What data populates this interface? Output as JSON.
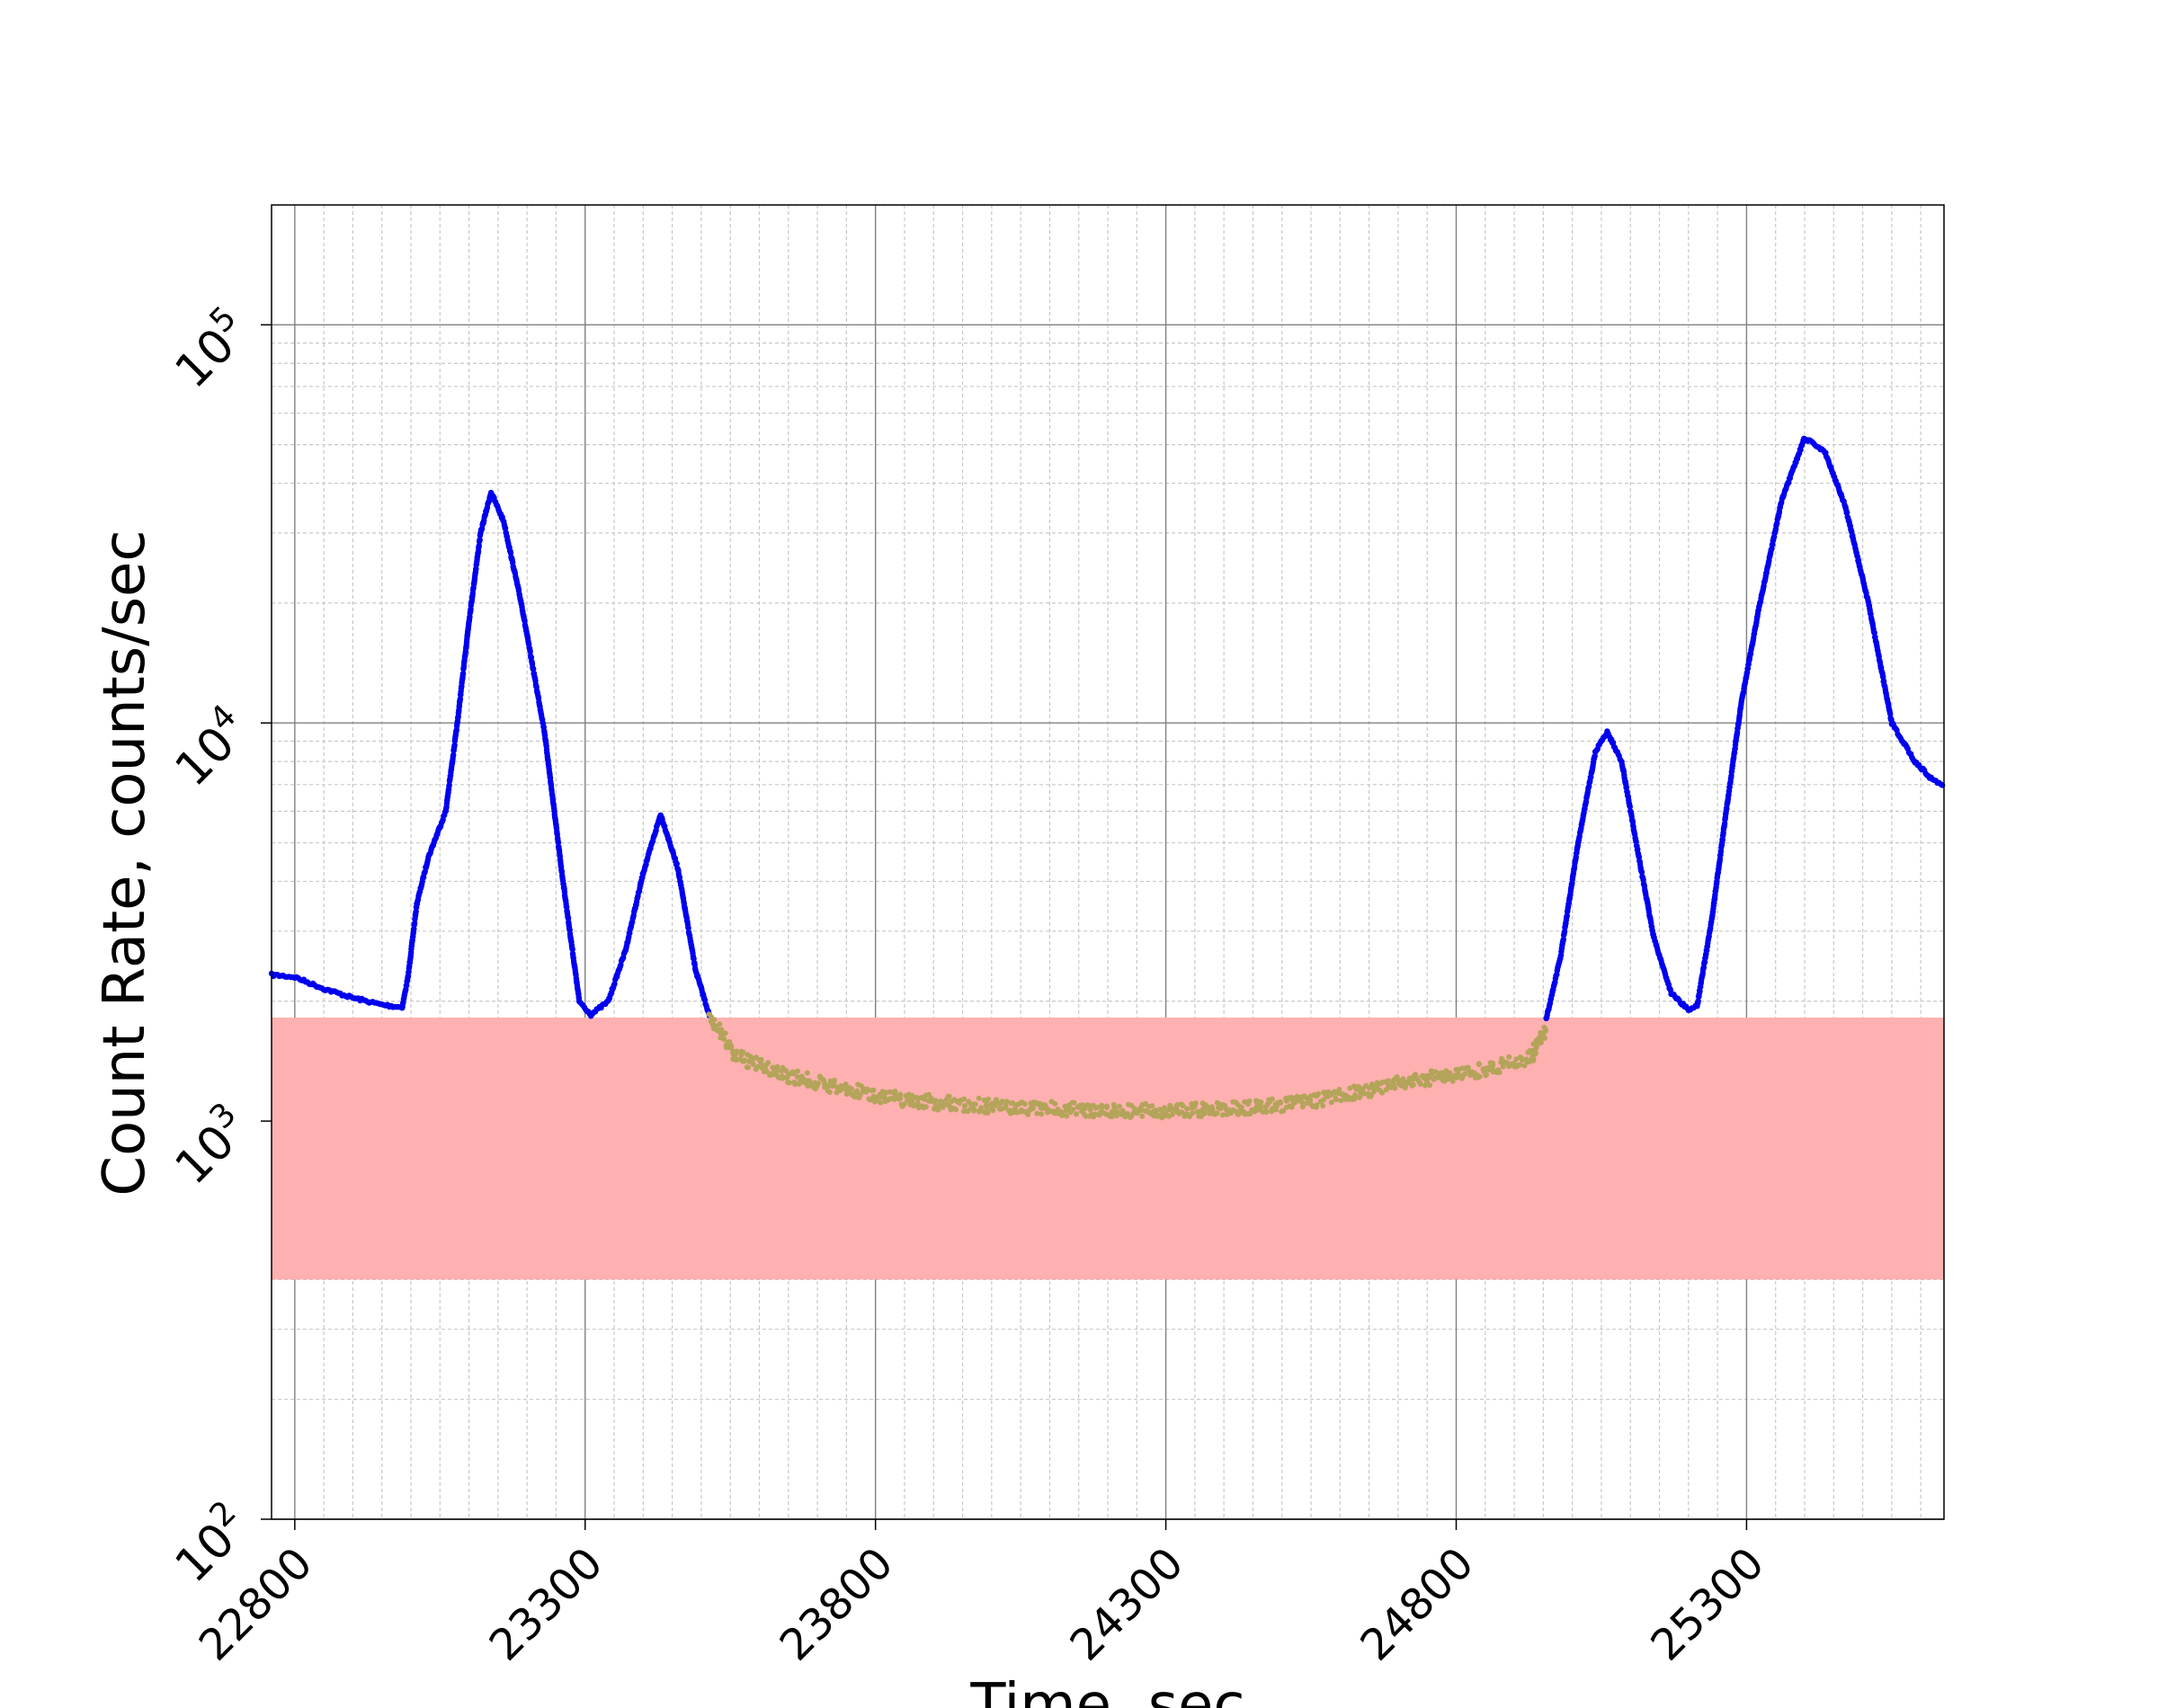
{
  "chart_data": {
    "type": "scatter",
    "title": "",
    "xlabel": "Time, sec",
    "ylabel": "Count Rate, counts/sec",
    "xlim": [
      22760,
      25640
    ],
    "ylim": [
      100,
      200000
    ],
    "y_scale": "log",
    "grid": true,
    "x_ticks": [
      "22800",
      "23300",
      "23800",
      "24300",
      "24800",
      "25300"
    ],
    "x_tick_values": [
      22800,
      23300,
      23800,
      24300,
      24800,
      25300
    ],
    "y_ticks": [
      {
        "base": "10",
        "exp": "2",
        "value": 100
      },
      {
        "base": "10",
        "exp": "3",
        "value": 1000
      },
      {
        "base": "10",
        "exp": "4",
        "value": 10000
      },
      {
        "base": "10",
        "exp": "5",
        "value": 100000
      }
    ],
    "threshold_band": {
      "y_min": 400,
      "y_max": 1820,
      "color": "#ffb0b0"
    },
    "series": [
      {
        "color": "#0000ee",
        "points": [
          [
            22760,
            2330
          ],
          [
            22800,
            2300
          ],
          [
            22850,
            2150
          ],
          [
            22900,
            2040
          ],
          [
            22950,
            1960
          ],
          [
            22985,
            1930
          ],
          [
            22995,
            2300
          ],
          [
            23010,
            3500
          ],
          [
            23030,
            4600
          ],
          [
            23060,
            6000
          ],
          [
            23080,
            10000
          ],
          [
            23100,
            18000
          ],
          [
            23120,
            30000
          ],
          [
            23138,
            38000
          ],
          [
            23160,
            32000
          ],
          [
            23190,
            20000
          ],
          [
            23230,
            9500
          ],
          [
            23260,
            4200
          ],
          [
            23290,
            2000
          ],
          [
            23310,
            1850
          ],
          [
            23340,
            2000
          ],
          [
            23370,
            2700
          ],
          [
            23400,
            4200
          ],
          [
            23430,
            5900
          ],
          [
            23460,
            4300
          ],
          [
            23490,
            2400
          ],
          [
            23515,
            1820
          ]
        ]
      },
      {
        "color": "#b4a45a",
        "points": [
          [
            23515,
            1820
          ],
          [
            23560,
            1450
          ],
          [
            23650,
            1300
          ],
          [
            23750,
            1200
          ],
          [
            23850,
            1130
          ],
          [
            23950,
            1100
          ],
          [
            24050,
            1080
          ],
          [
            24150,
            1070
          ],
          [
            24250,
            1060
          ],
          [
            24350,
            1065
          ],
          [
            24450,
            1080
          ],
          [
            24550,
            1120
          ],
          [
            24650,
            1200
          ],
          [
            24750,
            1280
          ],
          [
            24850,
            1350
          ],
          [
            24930,
            1450
          ],
          [
            24955,
            1700
          ]
        ]
      },
      {
        "color": "#0000ee",
        "points": [
          [
            24955,
            1800
          ],
          [
            24980,
            2600
          ],
          [
            25010,
            5000
          ],
          [
            25040,
            8500
          ],
          [
            25060,
            9500
          ],
          [
            25085,
            8000
          ],
          [
            25110,
            5000
          ],
          [
            25140,
            2900
          ],
          [
            25170,
            2100
          ],
          [
            25200,
            1900
          ],
          [
            25215,
            1950
          ],
          [
            25240,
            3200
          ],
          [
            25265,
            6000
          ],
          [
            25290,
            11000
          ],
          [
            25320,
            19000
          ],
          [
            25360,
            36000
          ],
          [
            25400,
            52000
          ],
          [
            25435,
            48000
          ],
          [
            25470,
            35000
          ],
          [
            25510,
            20000
          ],
          [
            25550,
            10000
          ],
          [
            25590,
            8000
          ],
          [
            25620,
            7200
          ],
          [
            25640,
            7000
          ]
        ]
      }
    ]
  }
}
